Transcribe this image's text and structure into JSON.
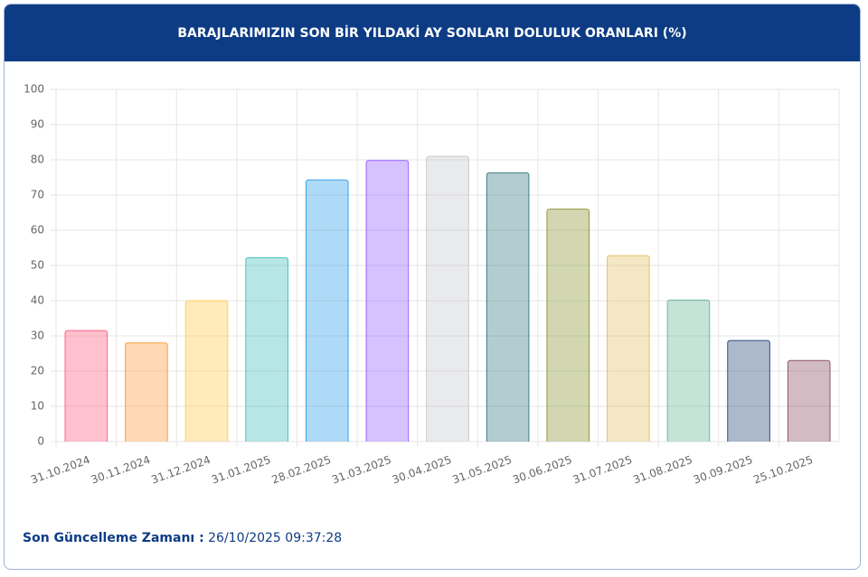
{
  "chart_data": {
    "type": "bar",
    "title": "BARAJLARIMIZIN SON BİR YILDAKİ AY SONLARI DOLULUK ORANLARI (%)",
    "categories": [
      "31.10.2024",
      "30.11.2024",
      "31.12.2024",
      "31.01.2025",
      "28.02.2025",
      "31.03.2025",
      "30.04.2025",
      "31.05.2025",
      "30.06.2025",
      "31.07.2025",
      "31.08.2025",
      "30.09.2025",
      "25.10.2025"
    ],
    "values": [
      31.5,
      28,
      40,
      52.2,
      74.3,
      79.8,
      81,
      76.3,
      66,
      52.8,
      40.2,
      28.7,
      23
    ],
    "colors": [
      "#ff6384",
      "#ff9f40",
      "#ffcd56",
      "#4bc0c0",
      "#36a2eb",
      "#9966ff",
      "#c9cbcf",
      "#3f7f86",
      "#8f9a3c",
      "#e4c46a",
      "#6fb89a",
      "#2f4f7f",
      "#8e5566"
    ],
    "ylim": [
      0,
      100
    ],
    "yticks": [
      0,
      10,
      20,
      30,
      40,
      50,
      60,
      70,
      80,
      90,
      100
    ],
    "grid": true
  },
  "footer": {
    "label": "Son Güncelleme Zamanı :",
    "value": "26/10/2025 09:37:28"
  }
}
